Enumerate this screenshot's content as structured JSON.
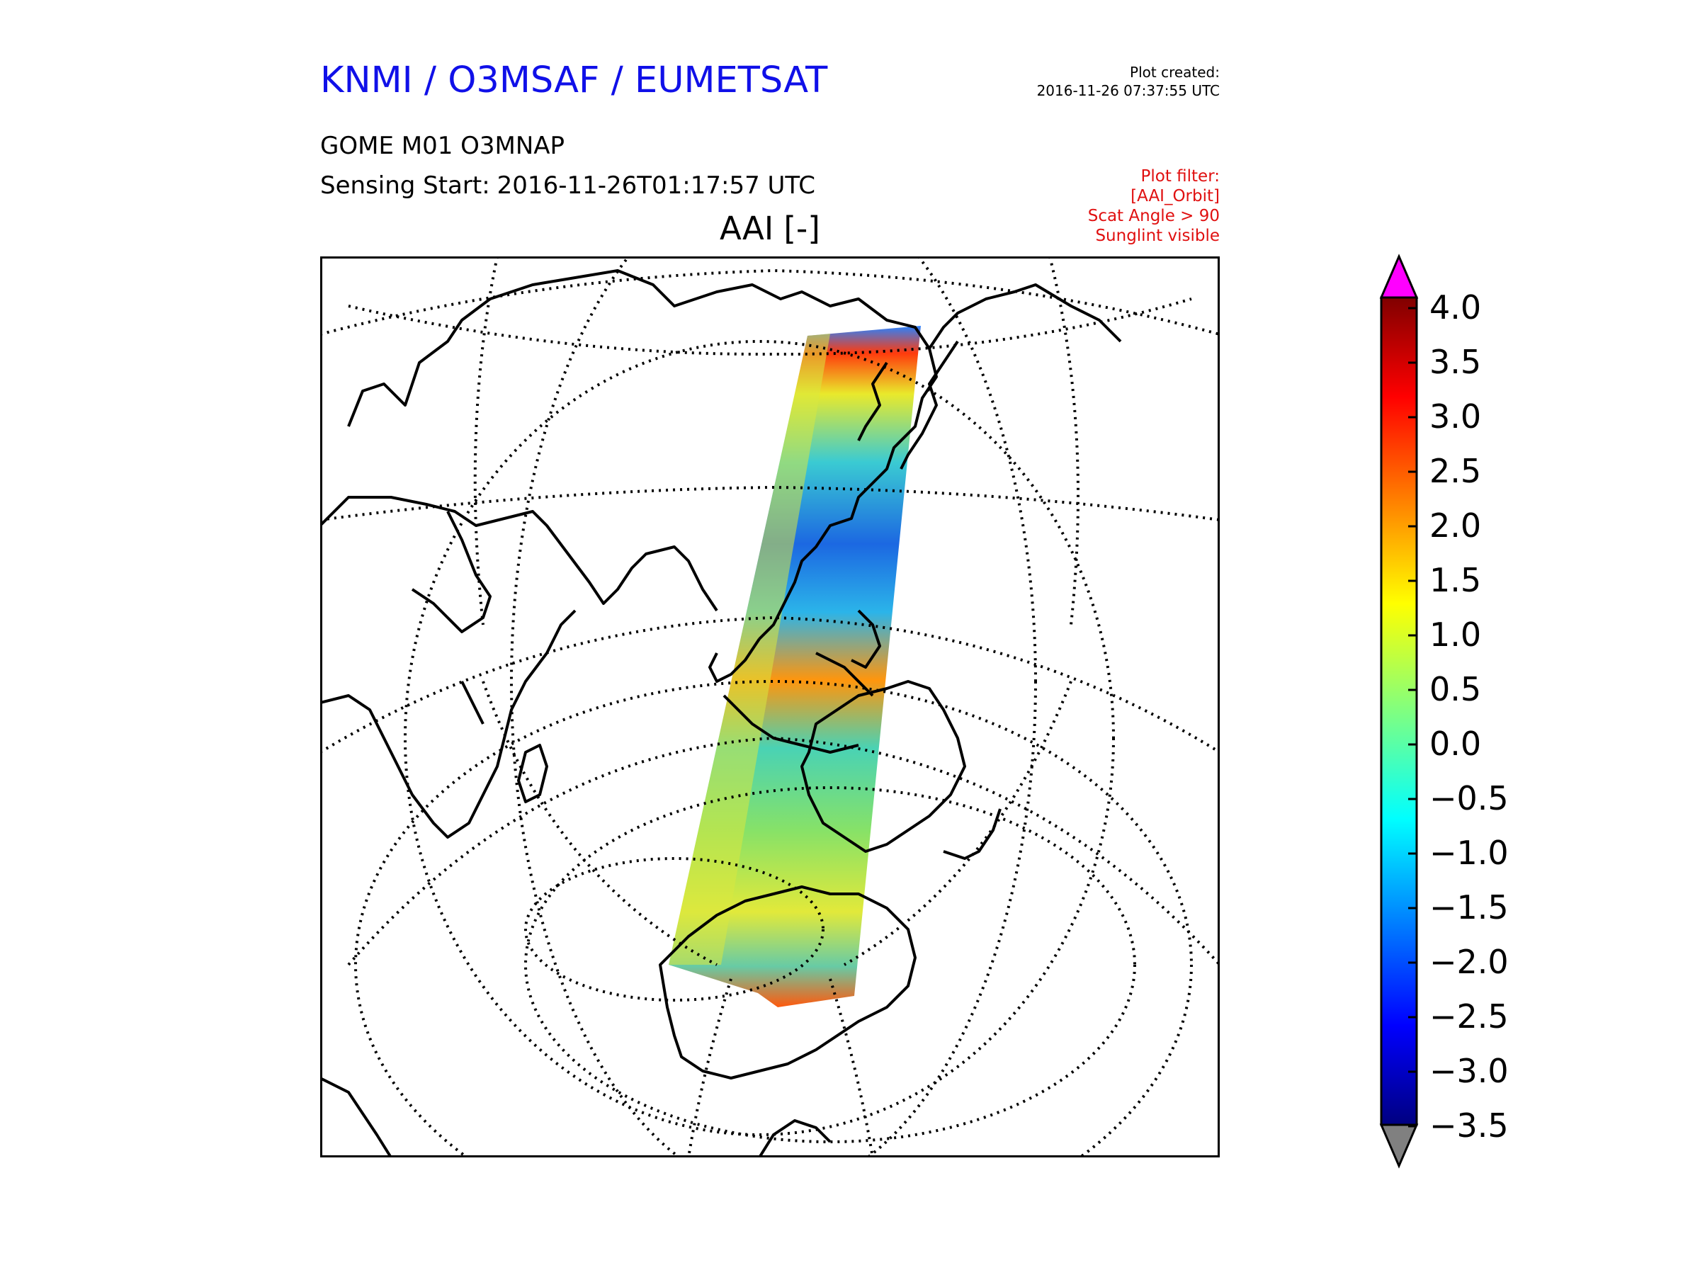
{
  "header": {
    "org": "KNMI / O3MSAF / EUMETSAT",
    "created_label": "Plot created:",
    "created_time": "2016-11-26 07:37:55 UTC",
    "product": "GOME M01 O3MNAP",
    "sensing_label": "Sensing Start:",
    "sensing_value": "2016-11-26T01:17:57 UTC"
  },
  "filter": {
    "lines": [
      "Plot filter:",
      "[AAI_Orbit]",
      "Scat Angle > 90",
      "Sunglint visible"
    ]
  },
  "map": {
    "title": "AAI [-]",
    "projection": "satellite / orthographic view",
    "features": [
      "coastlines",
      "graticule",
      "satellite-swath"
    ]
  },
  "colorbar": {
    "ticks": [
      "4.0",
      "3.5",
      "3.0",
      "2.5",
      "2.0",
      "1.5",
      "1.0",
      "0.5",
      "0.0",
      "−0.5",
      "−1.0",
      "−1.5",
      "−2.0",
      "−2.5",
      "−3.0",
      "−3.5"
    ],
    "over_color": "#ff00ff",
    "under_color": "#808080",
    "colormap": "jet"
  },
  "colors": {
    "title_blue": "#1010e8",
    "filter_red": "#e01010"
  }
}
